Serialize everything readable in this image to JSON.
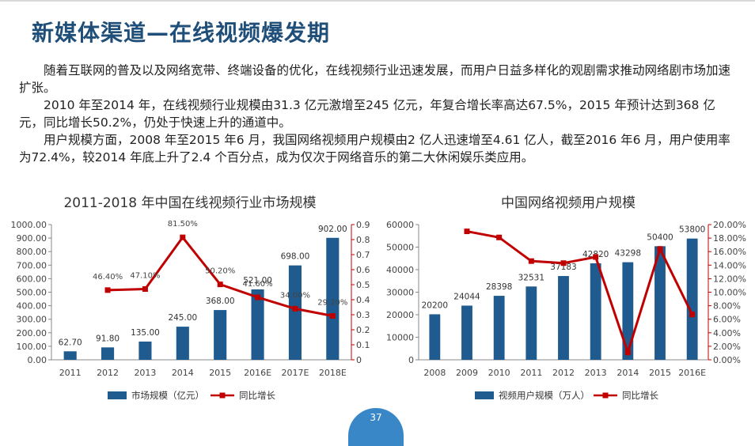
{
  "slide": {
    "title": "新媒体渠道—在线视频爆发期",
    "paragraphs": [
      "　　随着互联网的普及以及网络宽带、终端设备的优化，在线视频行业迅速发展，而用户日益多样化的观剧需求推动网络剧市场加速扩张。",
      "　　2010 年至2014 年，在线视频行业规模由31.3 亿元激增至245 亿元，年复合增长率高达67.5%，2015 年预计达到368 亿元，同比增长50.2%，仍处于快速上升的通道中。",
      "　　用户规模方面，2008 年至2015 年6 月，我国网络视频用户规模由2 亿人迅速增至4.61 亿人，截至2016 年6 月，用户使用率为72.4%，较2014 年底上升了2.4 个百分点，成为仅次于网络音乐的第二大休闲娱乐类应用。"
    ],
    "page_number": "37"
  },
  "colors": {
    "bar": "#1f5b8e",
    "line": "#c00000",
    "title": "#1f4e79",
    "axis_right": "#c00000"
  },
  "chart_data": [
    {
      "type": "bar",
      "title": "2011-2018 年中国在线视频行业市场规模",
      "categories": [
        "2011",
        "2012",
        "2013",
        "2014",
        "2015",
        "2016E",
        "2017E",
        "2018E"
      ],
      "series": [
        {
          "name": "市场规模（亿元）",
          "type": "bar",
          "axis": "left",
          "values": [
            62.7,
            91.8,
            135.0,
            245.0,
            368.0,
            521.0,
            698.0,
            902.0
          ],
          "labels": [
            "62.70",
            "91.80",
            "135.00",
            "245.00",
            "368.00",
            "521.00",
            "698.00",
            "902.00"
          ]
        },
        {
          "name": "同比增长",
          "type": "line",
          "axis": "right",
          "values": [
            null,
            0.464,
            0.471,
            0.815,
            0.502,
            0.416,
            0.34,
            0.292
          ],
          "labels": [
            "",
            "46.40%",
            "47.10%",
            "81.50%",
            "50.20%",
            "41.60%",
            "34.00%",
            "29.20%"
          ]
        }
      ],
      "ylim_left": [
        0,
        1000
      ],
      "yticks_left": [
        "0.00",
        "100.00",
        "200.00",
        "300.00",
        "400.00",
        "500.00",
        "600.00",
        "700.00",
        "800.00",
        "900.00",
        "1000.00"
      ],
      "ylim_right": [
        0,
        0.9
      ],
      "yticks_right": [
        "0",
        "0.1",
        "0.2",
        "0.3",
        "0.4",
        "0.5",
        "0.6",
        "0.7",
        "0.8",
        "0.9"
      ],
      "legend_position": "bottom"
    },
    {
      "type": "bar",
      "title": "中国网络视频用户规模",
      "categories": [
        "2008",
        "2009",
        "2010",
        "2011",
        "2012",
        "2013",
        "2014",
        "2015",
        "2016E"
      ],
      "series": [
        {
          "name": "视频用户规模（万人）",
          "type": "bar",
          "axis": "left",
          "values": [
            20200,
            24044,
            28398,
            32531,
            37183,
            42820,
            43298,
            50400,
            53800
          ],
          "labels": [
            "20200",
            "24044",
            "28398",
            "32531",
            "37183",
            "42820",
            "43298",
            "50400",
            "53800"
          ]
        },
        {
          "name": "同比增长",
          "type": "line",
          "axis": "right",
          "values": [
            null,
            19.0,
            18.1,
            14.6,
            14.3,
            15.2,
            1.1,
            16.4,
            6.7
          ],
          "labels": [
            "",
            "",
            "",
            "",
            "",
            "",
            "",
            "",
            ""
          ]
        }
      ],
      "ylim_left": [
        0,
        60000
      ],
      "yticks_left": [
        "0",
        "10000",
        "20000",
        "30000",
        "40000",
        "50000",
        "60000"
      ],
      "ylim_right": [
        0,
        20
      ],
      "yticks_right": [
        "0.00%",
        "2.00%",
        "4.00%",
        "6.00%",
        "8.00%",
        "10.00%",
        "12.00%",
        "14.00%",
        "16.00%",
        "18.00%",
        "20.00%"
      ],
      "legend_position": "bottom"
    }
  ]
}
